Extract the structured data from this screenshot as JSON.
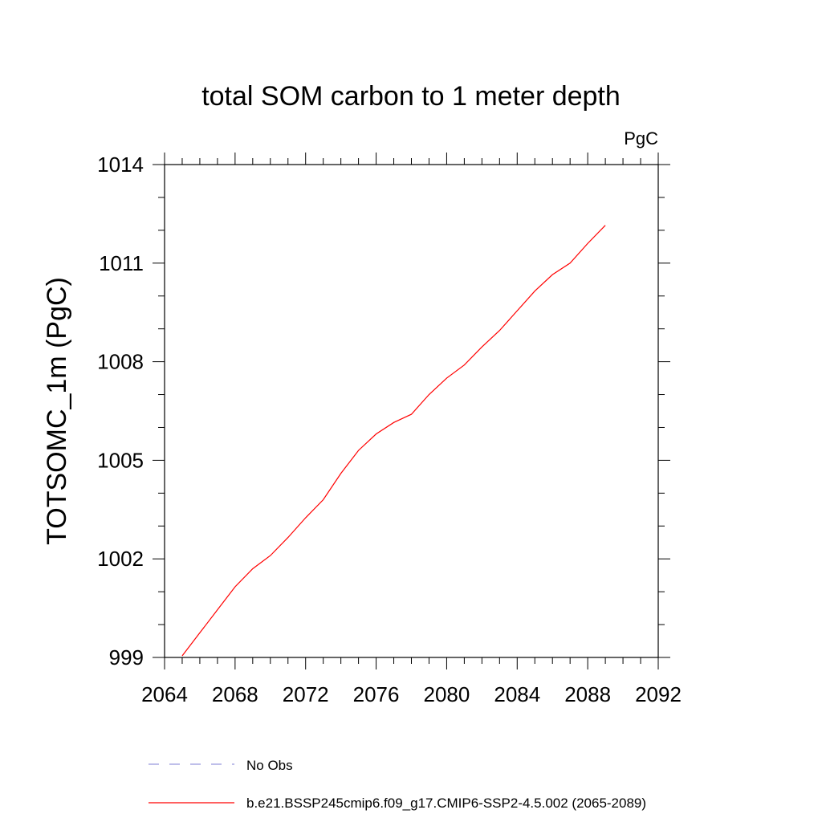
{
  "chart_data": {
    "type": "line",
    "title": "total SOM carbon to 1 meter depth",
    "units": "PgC",
    "xlabel": "",
    "ylabel": "TOTSOMC_1m  (PgC)",
    "xlim": [
      2064,
      2092
    ],
    "ylim": [
      999,
      1014
    ],
    "x_ticks": [
      2064,
      2068,
      2072,
      2076,
      2080,
      2084,
      2088,
      2092
    ],
    "y_ticks": [
      999,
      1002,
      1005,
      1008,
      1011,
      1014
    ],
    "x_tick_labels": [
      "2064",
      "2068",
      "2072",
      "2076",
      "2080",
      "2084",
      "2088",
      "2092"
    ],
    "y_tick_labels": [
      "999",
      "1002",
      "1005",
      "1008",
      "1011",
      "1014"
    ],
    "grid": false,
    "legend_position": "bottom",
    "series": [
      {
        "name": "b.e21.BSSP245cmip6.f09_g17.CMIP6-SSP2-4.5.002 (2065-2089)",
        "color": "#ff0000",
        "style": "solid",
        "x": [
          2065,
          2066,
          2067,
          2068,
          2069,
          2070,
          2071,
          2072,
          2073,
          2074,
          2075,
          2076,
          2077,
          2078,
          2079,
          2080,
          2081,
          2082,
          2083,
          2084,
          2085,
          2086,
          2087,
          2088,
          2089
        ],
        "y": [
          999.05,
          999.75,
          1000.45,
          1001.15,
          1001.7,
          1002.1,
          1002.65,
          1003.25,
          1003.8,
          1004.6,
          1005.3,
          1005.8,
          1006.15,
          1006.4,
          1007.0,
          1007.5,
          1007.9,
          1008.45,
          1008.95,
          1009.55,
          1010.15,
          1010.65,
          1011.0,
          1011.6,
          1012.15
        ]
      }
    ],
    "legend": [
      {
        "label": "No Obs",
        "color": "#9999dd",
        "style": "dashed"
      },
      {
        "label": "b.e21.BSSP245cmip6.f09_g17.CMIP6-SSP2-4.5.002 (2065-2089)",
        "color": "#ff0000",
        "style": "solid"
      }
    ]
  }
}
